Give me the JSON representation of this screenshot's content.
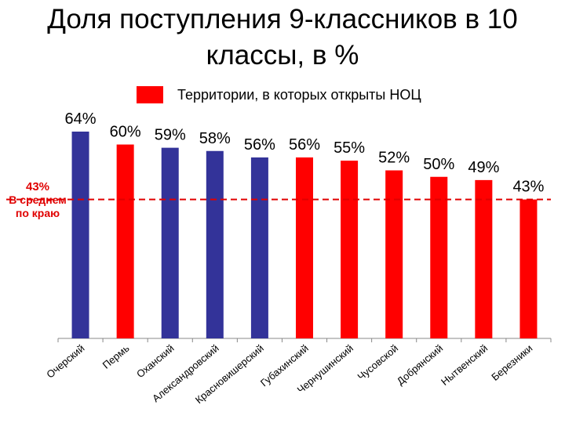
{
  "title": "Доля поступления 9-классников в 10 классы, в %",
  "legend": {
    "label": "Территории, в которых открыты НОЦ",
    "swatch_color": "#ff0000"
  },
  "average": {
    "value": "43%",
    "label_line1": "В среднем",
    "label_line2": "по краю",
    "color": "#e00000"
  },
  "chart_data": {
    "type": "bar",
    "title": "Доля поступления 9-классников в 10 классы, в %",
    "categories": [
      "Очерский",
      "Пермь",
      "Оханский",
      "Александровский",
      "Красновишерский",
      "Губахинский",
      "Чернушинский",
      "Чусовской",
      "Добрянский",
      "Нытвенский",
      "Березники"
    ],
    "values": [
      64,
      60,
      59,
      58,
      56,
      56,
      55,
      52,
      50,
      49,
      43
    ],
    "data_labels": [
      "64%",
      "60%",
      "59%",
      "58%",
      "56%",
      "56%",
      "55%",
      "52%",
      "50%",
      "49%",
      "43%"
    ],
    "bar_colors": [
      "#333399",
      "#ff0000",
      "#333399",
      "#333399",
      "#333399",
      "#ff0000",
      "#ff0000",
      "#ff0000",
      "#ff0000",
      "#ff0000",
      "#ff0000"
    ],
    "reference_line": {
      "value": 43
    },
    "ylim": [
      0,
      64
    ],
    "xlabel": "",
    "ylabel": "",
    "grid": false,
    "legend_position": "top"
  }
}
